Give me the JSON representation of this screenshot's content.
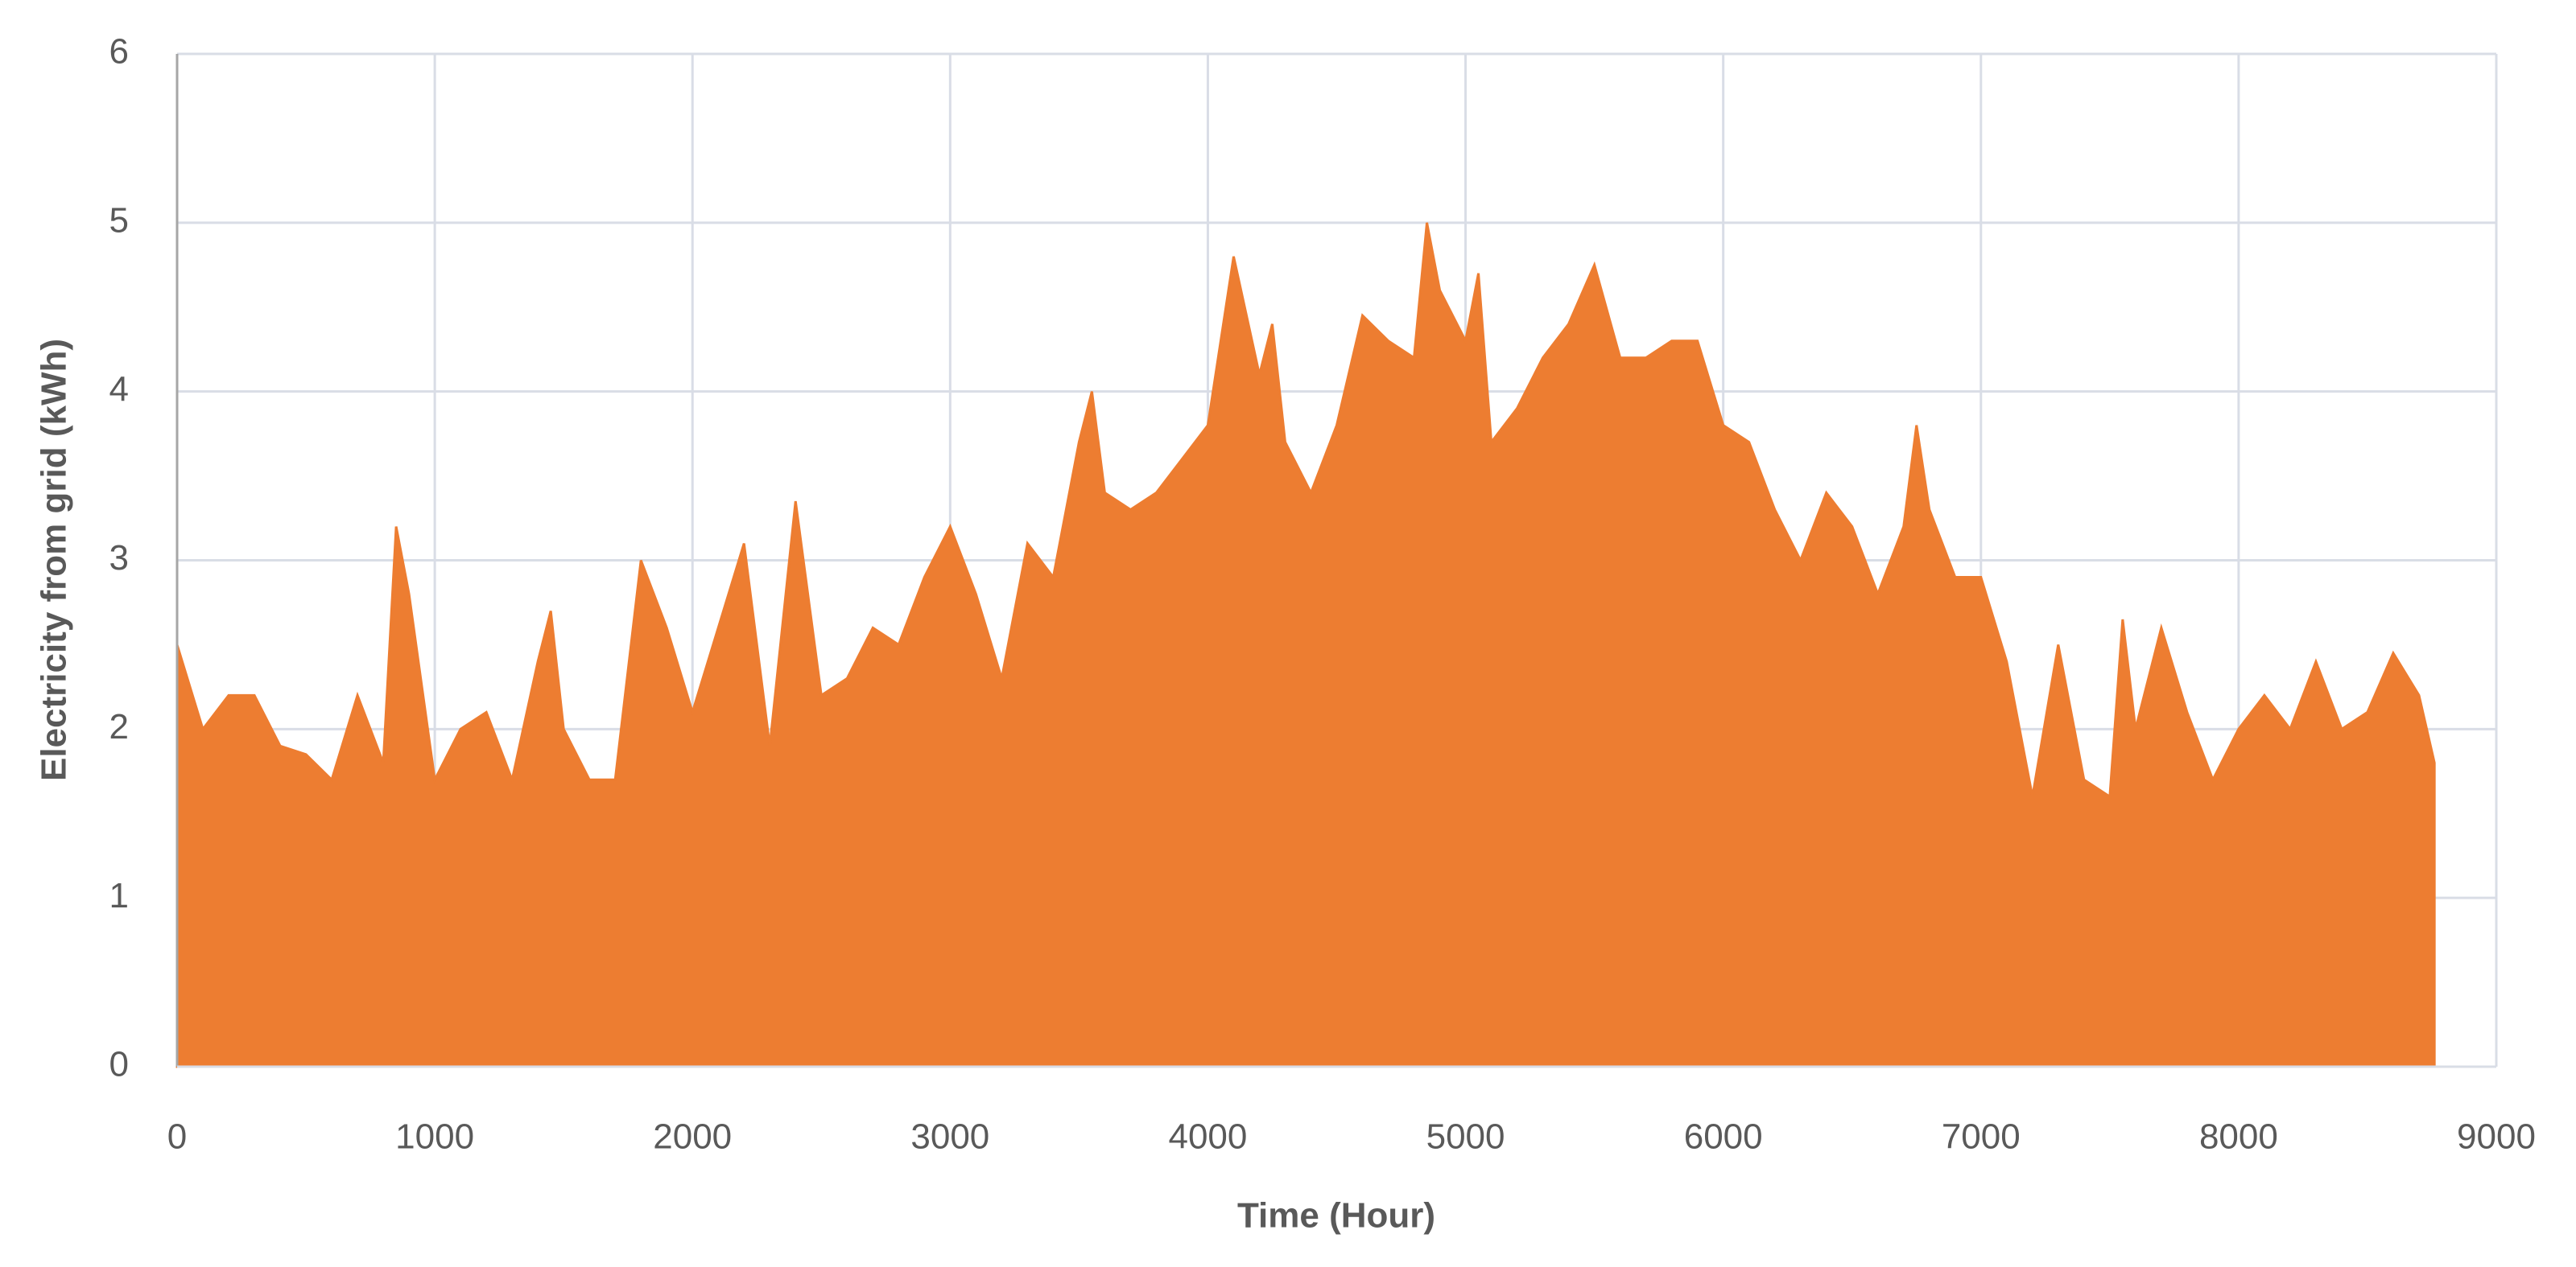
{
  "chart_data": {
    "type": "area",
    "x_label": "Time (Hour)",
    "y_label": "Electricity from grid  (kWh)",
    "color": "#ed7d31",
    "grid": true,
    "xlim": [
      0,
      9000
    ],
    "xticks": [
      0,
      1000,
      2000,
      3000,
      4000,
      5000,
      6000,
      7000,
      8000,
      9000
    ],
    "ylim": [
      0,
      6
    ],
    "yticks": [
      0,
      1,
      2,
      3,
      4,
      5,
      6
    ],
    "x": [
      0,
      100,
      200,
      300,
      400,
      500,
      600,
      700,
      800,
      850,
      900,
      1000,
      1100,
      1200,
      1300,
      1400,
      1450,
      1500,
      1600,
      1700,
      1800,
      1900,
      2000,
      2100,
      2200,
      2300,
      2400,
      2500,
      2600,
      2700,
      2800,
      2900,
      3000,
      3100,
      3200,
      3300,
      3400,
      3500,
      3550,
      3600,
      3700,
      3800,
      3900,
      4000,
      4100,
      4200,
      4250,
      4300,
      4400,
      4500,
      4600,
      4700,
      4800,
      4850,
      4900,
      5000,
      5050,
      5100,
      5200,
      5300,
      5400,
      5500,
      5600,
      5700,
      5800,
      5900,
      6000,
      6100,
      6200,
      6300,
      6400,
      6500,
      6600,
      6700,
      6750,
      6800,
      6900,
      7000,
      7100,
      7200,
      7300,
      7400,
      7500,
      7550,
      7600,
      7700,
      7800,
      7900,
      8000,
      8100,
      8200,
      8300,
      8400,
      8500,
      8600,
      8700,
      8760
    ],
    "values": [
      2.5,
      2.0,
      2.2,
      2.2,
      1.9,
      1.85,
      1.7,
      2.2,
      1.8,
      3.2,
      2.8,
      1.7,
      2.0,
      2.1,
      1.7,
      2.4,
      2.7,
      2.0,
      1.7,
      1.7,
      3.0,
      2.6,
      2.1,
      2.6,
      3.1,
      1.9,
      3.35,
      2.2,
      2.3,
      2.6,
      2.5,
      2.9,
      3.2,
      2.8,
      2.3,
      3.1,
      2.9,
      3.7,
      4.0,
      3.4,
      3.3,
      3.4,
      3.6,
      3.8,
      4.8,
      4.1,
      4.4,
      3.7,
      3.4,
      3.8,
      4.45,
      4.3,
      4.2,
      5.0,
      4.6,
      4.3,
      4.7,
      3.7,
      3.9,
      4.2,
      4.4,
      4.75,
      4.2,
      4.2,
      4.3,
      4.3,
      3.8,
      3.7,
      3.3,
      3.0,
      3.4,
      3.2,
      2.8,
      3.2,
      3.8,
      3.3,
      2.9,
      2.9,
      2.4,
      1.6,
      2.5,
      1.7,
      1.6,
      2.65,
      2.0,
      2.6,
      2.1,
      1.7,
      2.0,
      2.2,
      2.0,
      2.4,
      2.0,
      2.1,
      2.45,
      2.2,
      1.8
    ]
  }
}
